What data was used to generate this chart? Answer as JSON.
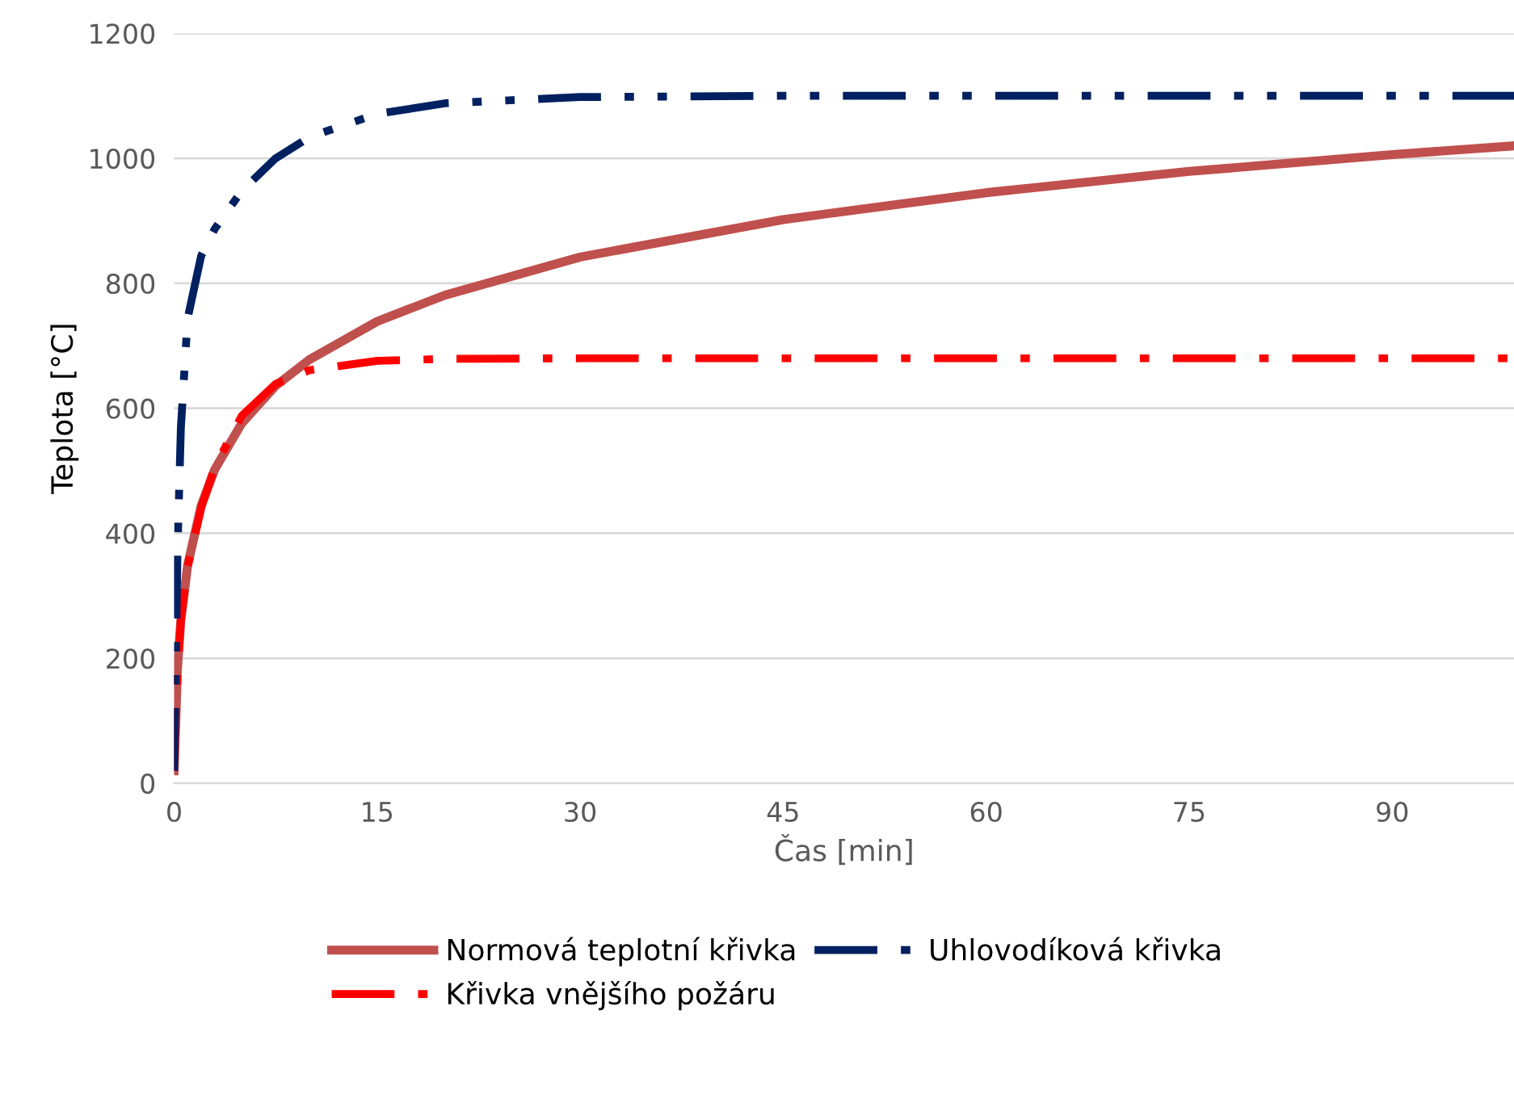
{
  "chart_data": {
    "type": "line",
    "xlabel": "Čas [min]",
    "ylabel": "Teplota [°C]",
    "xlim": [
      0,
      99
    ],
    "xticks": [
      0,
      15,
      30,
      45,
      60,
      75,
      90
    ],
    "ylim": [
      0,
      1200
    ],
    "yticks": [
      0,
      200,
      400,
      600,
      800,
      1000,
      1200
    ],
    "grid": "y",
    "legend": "bottom",
    "marker": "none",
    "series": [
      {
        "name": "Normová teplotní křivka",
        "color": "#c0504d",
        "line_style": "solid",
        "x": [
          0,
          0.25,
          0.5,
          1,
          2,
          3,
          5,
          7.5,
          10,
          15,
          20,
          30,
          45,
          60,
          75,
          90,
          99
        ],
        "values": [
          20,
          185,
          261,
          349,
          444,
          502,
          576,
          636,
          678,
          739,
          781,
          842,
          902,
          945,
          979,
          1006,
          1020
        ]
      },
      {
        "name": "Křivka vnějšího požáru",
        "color": "#ff0000",
        "line_style": "dashdot",
        "x": [
          0,
          0.25,
          0.5,
          1,
          2,
          3,
          5,
          7.5,
          10,
          15,
          20,
          30,
          99
        ],
        "values": [
          20,
          182,
          263,
          346,
          441,
          506,
          588,
          639,
          661,
          676,
          679,
          680,
          680
        ]
      },
      {
        "name": "Uhlovodíková křivka",
        "color": "#002060",
        "line_style": "dashdotdot",
        "x": [
          0,
          0.25,
          0.5,
          1,
          2,
          3,
          5,
          7.5,
          10,
          15,
          20,
          30,
          45,
          99
        ],
        "values": [
          20,
          373,
          569,
          744,
          844,
          887,
          948,
          1000,
          1034,
          1071,
          1088,
          1098,
          1100,
          1100
        ]
      }
    ]
  }
}
